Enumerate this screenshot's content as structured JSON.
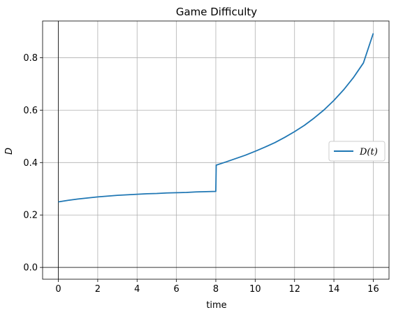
{
  "chart_data": {
    "type": "line",
    "title": "Game Difficulty",
    "xlabel": "time",
    "ylabel": "D",
    "xlim": [
      -0.8,
      16.8
    ],
    "ylim": [
      -0.045,
      0.94
    ],
    "xticks": [
      0,
      2,
      4,
      6,
      8,
      10,
      12,
      14,
      16
    ],
    "xtick_labels": [
      "0",
      "2",
      "4",
      "6",
      "8",
      "10",
      "12",
      "14",
      "16"
    ],
    "yticks": [
      0.0,
      0.2,
      0.4,
      0.6,
      0.8
    ],
    "ytick_labels": [
      "0.0",
      "0.2",
      "0.4",
      "0.6",
      "0.8"
    ],
    "grid": true,
    "reference_lines": {
      "x": 0,
      "y": 0,
      "color": "#000000"
    },
    "legend_placement": "center-right",
    "colors": {
      "series": "#1f77b4",
      "grid": "#b0b0b0",
      "axes": "#000000"
    },
    "series": [
      {
        "name": "D(t)",
        "x": [
          0,
          0.5,
          1,
          1.5,
          2,
          2.5,
          3,
          3.5,
          4,
          4.5,
          5,
          5.5,
          6,
          6.5,
          7,
          7.5,
          8,
          8.02,
          8.5,
          9,
          9.5,
          10,
          10.5,
          11,
          11.5,
          12,
          12.5,
          13,
          13.5,
          14,
          14.5,
          15,
          15.5,
          16
        ],
        "values": [
          0.25,
          0.256,
          0.261,
          0.265,
          0.269,
          0.272,
          0.275,
          0.277,
          0.279,
          0.281,
          0.282,
          0.284,
          0.285,
          0.286,
          0.288,
          0.289,
          0.29,
          0.39,
          0.402,
          0.415,
          0.428,
          0.443,
          0.459,
          0.476,
          0.496,
          0.518,
          0.542,
          0.57,
          0.601,
          0.637,
          0.678,
          0.725,
          0.78,
          0.893
        ]
      }
    ]
  }
}
